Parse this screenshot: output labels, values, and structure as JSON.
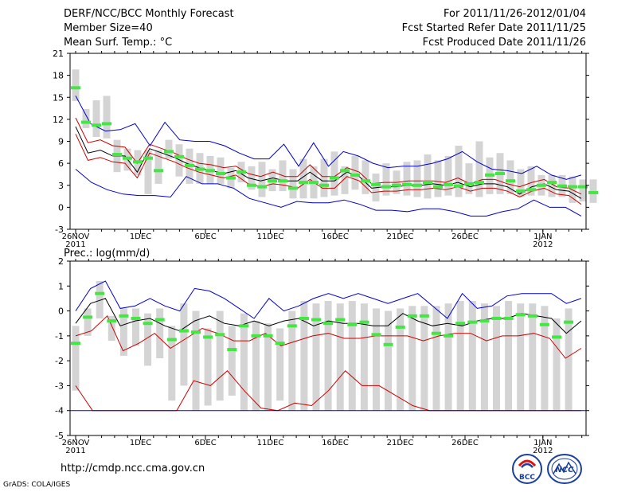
{
  "header": {
    "title": "DERF/NCC/BCC Monthly Forecast",
    "member_size": "Member Size=40",
    "variable": "Mean Surf. Temp.: °C",
    "period": "For 2011/11/26-2012/01/04",
    "fcst_started": "Fcst Started Refer Date 2011/11/25",
    "fcst_produced": "Fcst Produced Date 2011/11/26"
  },
  "footer": {
    "url": "http://cmdp.ncc.cma.gov.cn",
    "credit": "GrADS: COLA/IGES",
    "logo_bcc": "BCC",
    "logo_ncc": "NCC"
  },
  "colors": {
    "box": "#d4d4d4",
    "median": "#44e644",
    "max": "#0000cc",
    "min": "#cc0000",
    "mean": "#000000"
  },
  "chart_data": [
    {
      "type": "box-line",
      "title": "Mean Surf. Temp.: °C",
      "ylim": [
        -3,
        21
      ],
      "yticks": [
        -3,
        0,
        3,
        6,
        9,
        12,
        15,
        18,
        21
      ],
      "xticks": [
        {
          "day": 0,
          "label": "26NOV",
          "label2": "2011"
        },
        {
          "day": 5,
          "label": "1DEC"
        },
        {
          "day": 10,
          "label": "6DEC"
        },
        {
          "day": 15,
          "label": "11DEC"
        },
        {
          "day": 20,
          "label": "16DEC"
        },
        {
          "day": 25,
          "label": "21DEC"
        },
        {
          "day": 30,
          "label": "26DEC"
        },
        {
          "day": 36,
          "label": "1JAN",
          "label2": "2012"
        }
      ],
      "boxes": [
        [
          14.5,
          18.8,
          16.3
        ],
        [
          10.8,
          13.4,
          11.6
        ],
        [
          9.6,
          14.6,
          11.2
        ],
        [
          9.4,
          15.2,
          11.4
        ],
        [
          4.8,
          9.2,
          7.2
        ],
        [
          5.0,
          8.0,
          6.7
        ],
        [
          4.4,
          7.8,
          6.2
        ],
        [
          1.8,
          7.8,
          6.7
        ],
        [
          3.2,
          7.8,
          5.0
        ],
        [
          6.6,
          9.2,
          7.6
        ],
        [
          4.2,
          8.6,
          6.9
        ],
        [
          3.2,
          8.0,
          5.7
        ],
        [
          3.2,
          7.4,
          5.2
        ],
        [
          3.2,
          7.0,
          5.0
        ],
        [
          3.2,
          6.8,
          4.6
        ],
        [
          2.6,
          5.4,
          4.0
        ],
        [
          3.4,
          6.2,
          4.8
        ],
        [
          2.4,
          5.6,
          3.0
        ],
        [
          1.4,
          6.2,
          2.8
        ],
        [
          2.2,
          5.2,
          3.6
        ],
        [
          2.2,
          6.4,
          3.6
        ],
        [
          1.2,
          5.2,
          2.6
        ],
        [
          1.2,
          6.6,
          3.4
        ],
        [
          1.2,
          5.6,
          3.4
        ],
        [
          1.4,
          6.6,
          3.0
        ],
        [
          1.6,
          7.6,
          4.0
        ],
        [
          1.8,
          5.6,
          5.0
        ],
        [
          2.4,
          7.0,
          4.4
        ],
        [
          1.8,
          6.4,
          3.6
        ],
        [
          0.8,
          4.6,
          3.1
        ],
        [
          1.6,
          6.0,
          2.8
        ],
        [
          1.8,
          5.0,
          3.0
        ],
        [
          1.6,
          6.2,
          3.1
        ],
        [
          1.4,
          6.4,
          3.0
        ],
        [
          1.2,
          7.2,
          3.4
        ],
        [
          1.4,
          6.4,
          2.8
        ],
        [
          1.6,
          7.0,
          3.1
        ],
        [
          1.4,
          8.4,
          2.9
        ],
        [
          1.8,
          6.0,
          3.2
        ],
        [
          1.4,
          9.0,
          3.4
        ],
        [
          1.8,
          6.8,
          4.4
        ],
        [
          1.8,
          7.4,
          4.6
        ],
        [
          1.8,
          6.4,
          3.6
        ],
        [
          1.4,
          5.2,
          2.2
        ],
        [
          1.6,
          5.6,
          2.4
        ],
        [
          1.6,
          4.4,
          3.0
        ],
        [
          1.4,
          4.4,
          3.4
        ],
        [
          1.4,
          4.4,
          2.9
        ],
        [
          0.6,
          4.2,
          2.8
        ],
        [
          0.8,
          3.8,
          2.8
        ],
        [
          0.6,
          3.8,
          2.0
        ]
      ],
      "series": [
        {
          "name": "max",
          "values": [
            15.2,
            11.4,
            10.4,
            10.6,
            11.4,
            8.4,
            11.6,
            9.2,
            9.0,
            9.0,
            8.4,
            7.4,
            6.6,
            6.6,
            8.6,
            5.6,
            8.8,
            5.6,
            7.6,
            7.0,
            6.0,
            5.4,
            5.6,
            5.6,
            6.0,
            6.6,
            7.6,
            6.2,
            5.2,
            5.0,
            4.6,
            5.6,
            4.4,
            3.8,
            4.4
          ]
        },
        {
          "name": "mean",
          "values": [
            11.0,
            7.4,
            7.8,
            7.0,
            7.0,
            4.8,
            8.0,
            7.4,
            6.8,
            6.0,
            5.4,
            5.0,
            4.6,
            5.0,
            4.0,
            3.6,
            4.0,
            3.6,
            3.6,
            4.8,
            3.6,
            3.6,
            4.8,
            4.2,
            2.6,
            2.8,
            2.8,
            3.0,
            3.0,
            3.2,
            3.0,
            3.4,
            2.8,
            3.2,
            3.2,
            2.8,
            1.8,
            2.8,
            3.2,
            2.4,
            2.2,
            1.2
          ]
        },
        {
          "name": "upper",
          "values": [
            12.2,
            8.8,
            9.2,
            8.4,
            8.2,
            6.0,
            8.6,
            8.0,
            7.4,
            6.6,
            6.0,
            5.8,
            5.4,
            5.6,
            4.6,
            4.2,
            4.8,
            4.2,
            4.2,
            5.8,
            4.2,
            4.2,
            5.4,
            4.8,
            3.2,
            3.4,
            3.4,
            3.6,
            3.6,
            3.6,
            3.4,
            4.0,
            3.2,
            3.8,
            3.8,
            3.2,
            2.8,
            3.4,
            3.8,
            2.8,
            2.6,
            1.8
          ]
        },
        {
          "name": "lower",
          "values": [
            10.0,
            6.4,
            6.8,
            6.2,
            6.0,
            4.0,
            7.4,
            6.8,
            6.2,
            5.4,
            4.8,
            4.4,
            4.0,
            4.4,
            3.2,
            2.8,
            3.2,
            3.0,
            2.6,
            3.8,
            2.6,
            2.6,
            4.2,
            3.6,
            2.0,
            2.2,
            2.2,
            2.4,
            2.4,
            2.6,
            2.4,
            2.8,
            2.2,
            2.6,
            2.6,
            2.2,
            1.4,
            2.2,
            2.6,
            1.8,
            1.6,
            0.4
          ]
        },
        {
          "name": "min",
          "values": [
            5.2,
            3.4,
            2.4,
            1.8,
            1.6,
            1.6,
            1.4,
            4.2,
            3.2,
            3.2,
            2.6,
            1.2,
            0.6,
            0.0,
            0.8,
            0.6,
            0.6,
            1.0,
            0.4,
            -0.4,
            -0.4,
            -0.6,
            -0.2,
            -0.2,
            -0.6,
            -1.2,
            -1.2,
            -0.6,
            -0.2,
            1.0,
            0.0,
            0.0,
            -1.2
          ]
        }
      ]
    },
    {
      "type": "box-line",
      "title": "Prec.: log(mm/d)",
      "ylim": [
        -5,
        2
      ],
      "yticks": [
        -5,
        -4,
        -3,
        -2,
        -1,
        0,
        1,
        2
      ],
      "xticks": [
        {
          "day": 0,
          "label": "26NOV",
          "label2": "2011"
        },
        {
          "day": 5,
          "label": "1DEC"
        },
        {
          "day": 10,
          "label": "6DEC"
        },
        {
          "day": 15,
          "label": "11DEC"
        },
        {
          "day": 20,
          "label": "16DEC"
        },
        {
          "day": 25,
          "label": "21DEC"
        },
        {
          "day": 30,
          "label": "26DEC"
        },
        {
          "day": 36,
          "label": "1JAN",
          "label2": "2012"
        }
      ],
      "boxes": [
        [
          -3.2,
          -0.6,
          -1.3
        ],
        [
          -1.0,
          0.1,
          -0.25
        ],
        [
          -0.3,
          1.2,
          0.7
        ],
        [
          -1.2,
          -0.2,
          -0.4
        ],
        [
          -1.8,
          0.1,
          -0.2
        ],
        [
          -1.4,
          0.1,
          -0.3
        ],
        [
          -2.2,
          -0.1,
          -0.5
        ],
        [
          -1.9,
          0.1,
          -0.35
        ],
        [
          -3.6,
          -0.6,
          -1.15
        ],
        [
          -3.0,
          0.3,
          -0.8
        ],
        [
          -4.0,
          0.0,
          -0.85
        ],
        [
          -3.8,
          -0.7,
          -1.05
        ],
        [
          -3.6,
          0.0,
          -0.95
        ],
        [
          -3.4,
          -0.6,
          -1.55
        ],
        [
          -4.0,
          -0.1,
          -0.6
        ],
        [
          -4.0,
          -0.4,
          -1.0
        ],
        [
          -4.0,
          -0.5,
          -1.0
        ],
        [
          -3.6,
          -0.7,
          -1.3
        ],
        [
          -4.0,
          0.0,
          -0.6
        ],
        [
          -4.0,
          0.4,
          -0.3
        ],
        [
          -4.0,
          0.3,
          -0.35
        ],
        [
          -4.0,
          0.4,
          -0.5
        ],
        [
          -4.0,
          0.3,
          -0.35
        ],
        [
          -4.0,
          0.4,
          -0.55
        ],
        [
          -4.0,
          0.3,
          -0.45
        ],
        [
          -4.0,
          0.1,
          -0.95
        ],
        [
          -4.0,
          0.0,
          -1.35
        ],
        [
          -4.0,
          0.1,
          -0.65
        ],
        [
          -4.0,
          0.2,
          -0.2
        ],
        [
          -4.0,
          0.2,
          -0.2
        ],
        [
          -4.0,
          0.2,
          -0.9
        ],
        [
          -4.0,
          0.3,
          -1.0
        ],
        [
          -4.0,
          0.4,
          -0.5
        ],
        [
          -4.0,
          0.4,
          -0.45
        ],
        [
          -4.0,
          0.3,
          -0.4
        ],
        [
          -4.0,
          0.2,
          -0.3
        ],
        [
          -4.0,
          0.4,
          -0.3
        ],
        [
          -4.0,
          0.3,
          -0.15
        ],
        [
          -4.0,
          0.3,
          -0.2
        ],
        [
          -4.0,
          0.2,
          -0.55
        ],
        [
          -4.0,
          -0.3,
          -1.05
        ],
        [
          -4.0,
          0.1,
          -0.45
        ]
      ],
      "series": [
        {
          "name": "max",
          "values": [
            0.0,
            0.9,
            1.2,
            0.1,
            0.2,
            0.5,
            0.2,
            0.0,
            0.9,
            0.8,
            0.5,
            0.1,
            -0.3,
            0.5,
            0.0,
            0.2,
            0.5,
            0.7,
            0.5,
            0.7,
            0.5,
            0.3,
            0.5,
            0.7,
            0.2,
            -0.3,
            0.7,
            0.1,
            0.2,
            0.6,
            0.7,
            0.7,
            0.7,
            0.3,
            0.5
          ]
        },
        {
          "name": "mean",
          "values": [
            -0.5,
            0.3,
            0.5,
            -0.6,
            -0.4,
            -0.3,
            -0.6,
            -0.8,
            -0.4,
            -0.2,
            -0.5,
            -0.6,
            -0.4,
            -0.6,
            -0.4,
            -0.3,
            -0.6,
            -0.4,
            -0.5,
            -0.5,
            -0.6,
            -0.6,
            -0.1,
            -0.4,
            -0.6,
            -0.5,
            -0.6,
            -0.4,
            -0.3,
            -0.3,
            -0.1,
            -0.2,
            -0.3,
            -0.9,
            -0.4
          ]
        },
        {
          "name": "p90",
          "values": [
            -1.0,
            -0.8,
            -0.2,
            -1.6,
            -1.3,
            -0.9,
            -1.5,
            -1.1,
            -0.7,
            -0.9,
            -1.2,
            -1.2,
            -0.9,
            -1.4,
            -1.2,
            -1.0,
            -0.9,
            -1.1,
            -1.1,
            -1.0,
            -1.0,
            -1.0,
            -1.2,
            -1.0,
            -0.9,
            -0.9,
            -1.2,
            -1.0,
            -1.0,
            -0.9,
            -1.1,
            -1.9,
            -1.5
          ]
        },
        {
          "name": "min",
          "values": [
            -3.0,
            -4.0,
            -4.0,
            -4.0,
            -4.0,
            -4.0,
            -4.0,
            -2.8,
            -3.0,
            -2.4,
            -3.2,
            -3.9,
            -4.0,
            -3.7,
            -3.8,
            -3.2,
            -2.4,
            -3.0,
            -3.0,
            -3.4,
            -3.8,
            -4.0,
            -4.0,
            -4.0,
            -4.0,
            -4.0,
            -4.0,
            -4.0,
            -4.0,
            -4.0,
            -4.0
          ]
        }
      ]
    }
  ]
}
